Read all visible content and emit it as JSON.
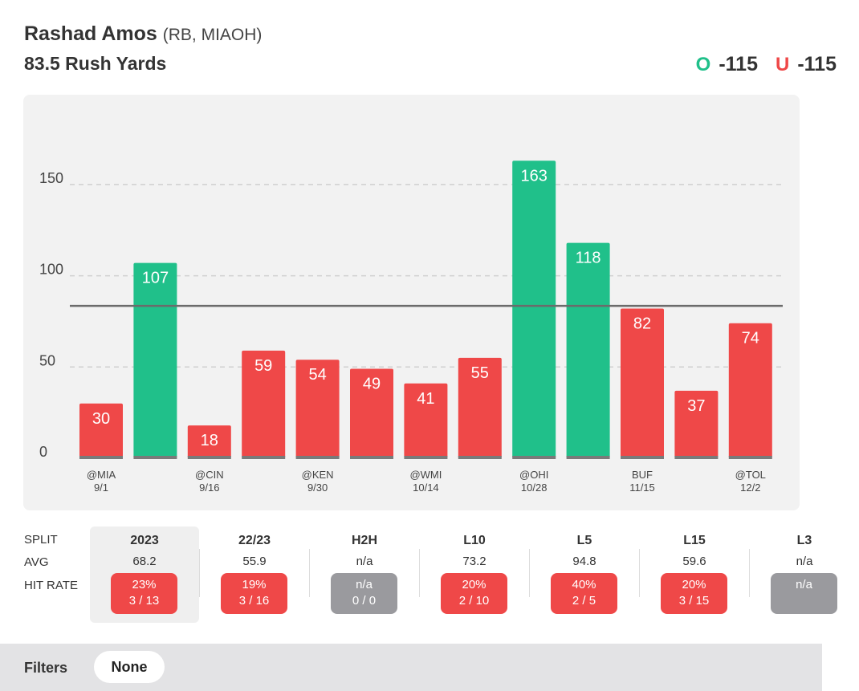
{
  "player": {
    "name": "Rashad Amos",
    "meta": "(RB, MIAOH)"
  },
  "prop": {
    "line_label": "83.5 Rush Yards",
    "line_value": 83.5
  },
  "odds": {
    "over_letter": "O",
    "over_price": "-115",
    "under_letter": "U",
    "under_price": "-115"
  },
  "colors": {
    "over": "#20c08a",
    "under": "#ef4848",
    "neutral": "#9a9a9e"
  },
  "chart_data": {
    "type": "bar",
    "categories": [
      "@MIA 9/1",
      "",
      "@CIN 9/16",
      "",
      "@KEN 9/30",
      "",
      "@WMI 10/14",
      "",
      "@OHI 10/28",
      "",
      "BUF 11/15",
      "",
      "@TOL 12/2"
    ],
    "values": [
      30,
      107,
      18,
      59,
      54,
      49,
      41,
      55,
      163,
      118,
      82,
      37,
      74
    ],
    "x_ticks": [
      {
        "index": 0,
        "opp": "@MIA",
        "date": "9/1"
      },
      {
        "index": 2,
        "opp": "@CIN",
        "date": "9/16"
      },
      {
        "index": 4,
        "opp": "@KEN",
        "date": "9/30"
      },
      {
        "index": 6,
        "opp": "@WMI",
        "date": "10/14"
      },
      {
        "index": 8,
        "opp": "@OHI",
        "date": "10/28"
      },
      {
        "index": 10,
        "opp": "BUF",
        "date": "11/15"
      },
      {
        "index": 12,
        "opp": "@TOL",
        "date": "12/2"
      }
    ],
    "y_ticks": [
      0,
      50,
      100,
      150
    ],
    "ylim": [
      0,
      175
    ],
    "threshold": 83.5,
    "grid": true
  },
  "splits": {
    "row_labels": {
      "split": "SPLIT",
      "avg": "AVG",
      "hit_rate": "HIT RATE"
    },
    "columns": [
      {
        "name": "2023",
        "avg": "68.2",
        "pct": "23%",
        "count": "3 / 13",
        "status": "red"
      },
      {
        "name": "22/23",
        "avg": "55.9",
        "pct": "19%",
        "count": "3 / 16",
        "status": "red"
      },
      {
        "name": "H2H",
        "avg": "n/a",
        "pct": "n/a",
        "count": "0 / 0",
        "status": "gray"
      },
      {
        "name": "L10",
        "avg": "73.2",
        "pct": "20%",
        "count": "2 / 10",
        "status": "red"
      },
      {
        "name": "L5",
        "avg": "94.8",
        "pct": "40%",
        "count": "2 / 5",
        "status": "red"
      },
      {
        "name": "L15",
        "avg": "59.6",
        "pct": "20%",
        "count": "3 / 15",
        "status": "red"
      },
      {
        "name": "L3",
        "avg": "n/a",
        "pct": "n/a",
        "count": "",
        "status": "gray"
      }
    ]
  },
  "filters": {
    "label": "Filters",
    "value": "None"
  }
}
